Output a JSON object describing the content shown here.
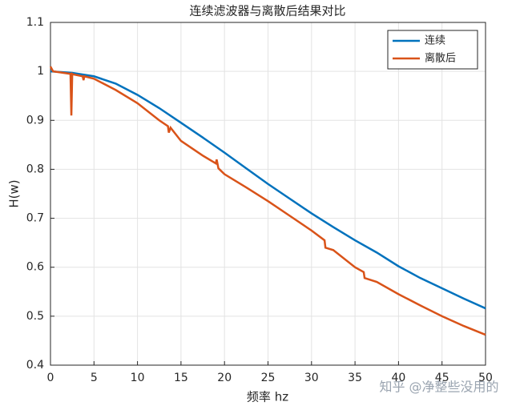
{
  "chart_data": {
    "type": "line",
    "title": "连续滤波器与离散后结果对比",
    "x_label": "频率 hz",
    "y_label": "H(w)",
    "series": [
      {
        "name": "连续",
        "color": "#0072bd",
        "x": [
          0,
          2.5,
          5,
          7.5,
          10,
          12.5,
          15,
          17.5,
          20,
          22.5,
          25,
          27.5,
          30,
          32.5,
          35,
          37.5,
          40,
          42.5,
          45,
          47.5,
          50
        ],
        "values": [
          1,
          0.997,
          0.99,
          0.975,
          0.952,
          0.925,
          0.895,
          0.865,
          0.834,
          0.802,
          0.77,
          0.74,
          0.71,
          0.682,
          0.655,
          0.63,
          0.602,
          0.578,
          0.557,
          0.536,
          0.516
        ]
      },
      {
        "name": "离散后",
        "color": "#d95319",
        "x": [
          0,
          0.3,
          2.3,
          2.4,
          2.5,
          2.6,
          3.7,
          3.8,
          3.9,
          5,
          7.5,
          10,
          12.5,
          13.5,
          13.6,
          13.8,
          15,
          17.5,
          19,
          19.1,
          19.3,
          20,
          22.5,
          25,
          27.5,
          30,
          31.5,
          31.6,
          32.5,
          35,
          36,
          36.1,
          37.5,
          40,
          42.5,
          45,
          47.5,
          50
        ],
        "values": [
          1.01,
          1.0,
          0.995,
          0.91,
          0.995,
          0.994,
          0.99,
          0.982,
          0.99,
          0.985,
          0.962,
          0.935,
          0.9,
          0.888,
          0.875,
          0.885,
          0.858,
          0.828,
          0.812,
          0.82,
          0.802,
          0.79,
          0.763,
          0.735,
          0.705,
          0.675,
          0.655,
          0.64,
          0.635,
          0.6,
          0.59,
          0.578,
          0.57,
          0.545,
          0.522,
          0.5,
          0.48,
          0.462
        ]
      }
    ],
    "xlim": [
      0,
      50
    ],
    "xticks": [
      0,
      5,
      10,
      15,
      20,
      25,
      30,
      35,
      40,
      45,
      50
    ],
    "ylim": [
      0.4,
      1.1
    ],
    "yticks": [
      0.4,
      0.5,
      0.6,
      0.7,
      0.8,
      0.9,
      1,
      1.1
    ],
    "grid": true,
    "legend": "top-right",
    "watermark": "知乎 @净整些没用的"
  }
}
